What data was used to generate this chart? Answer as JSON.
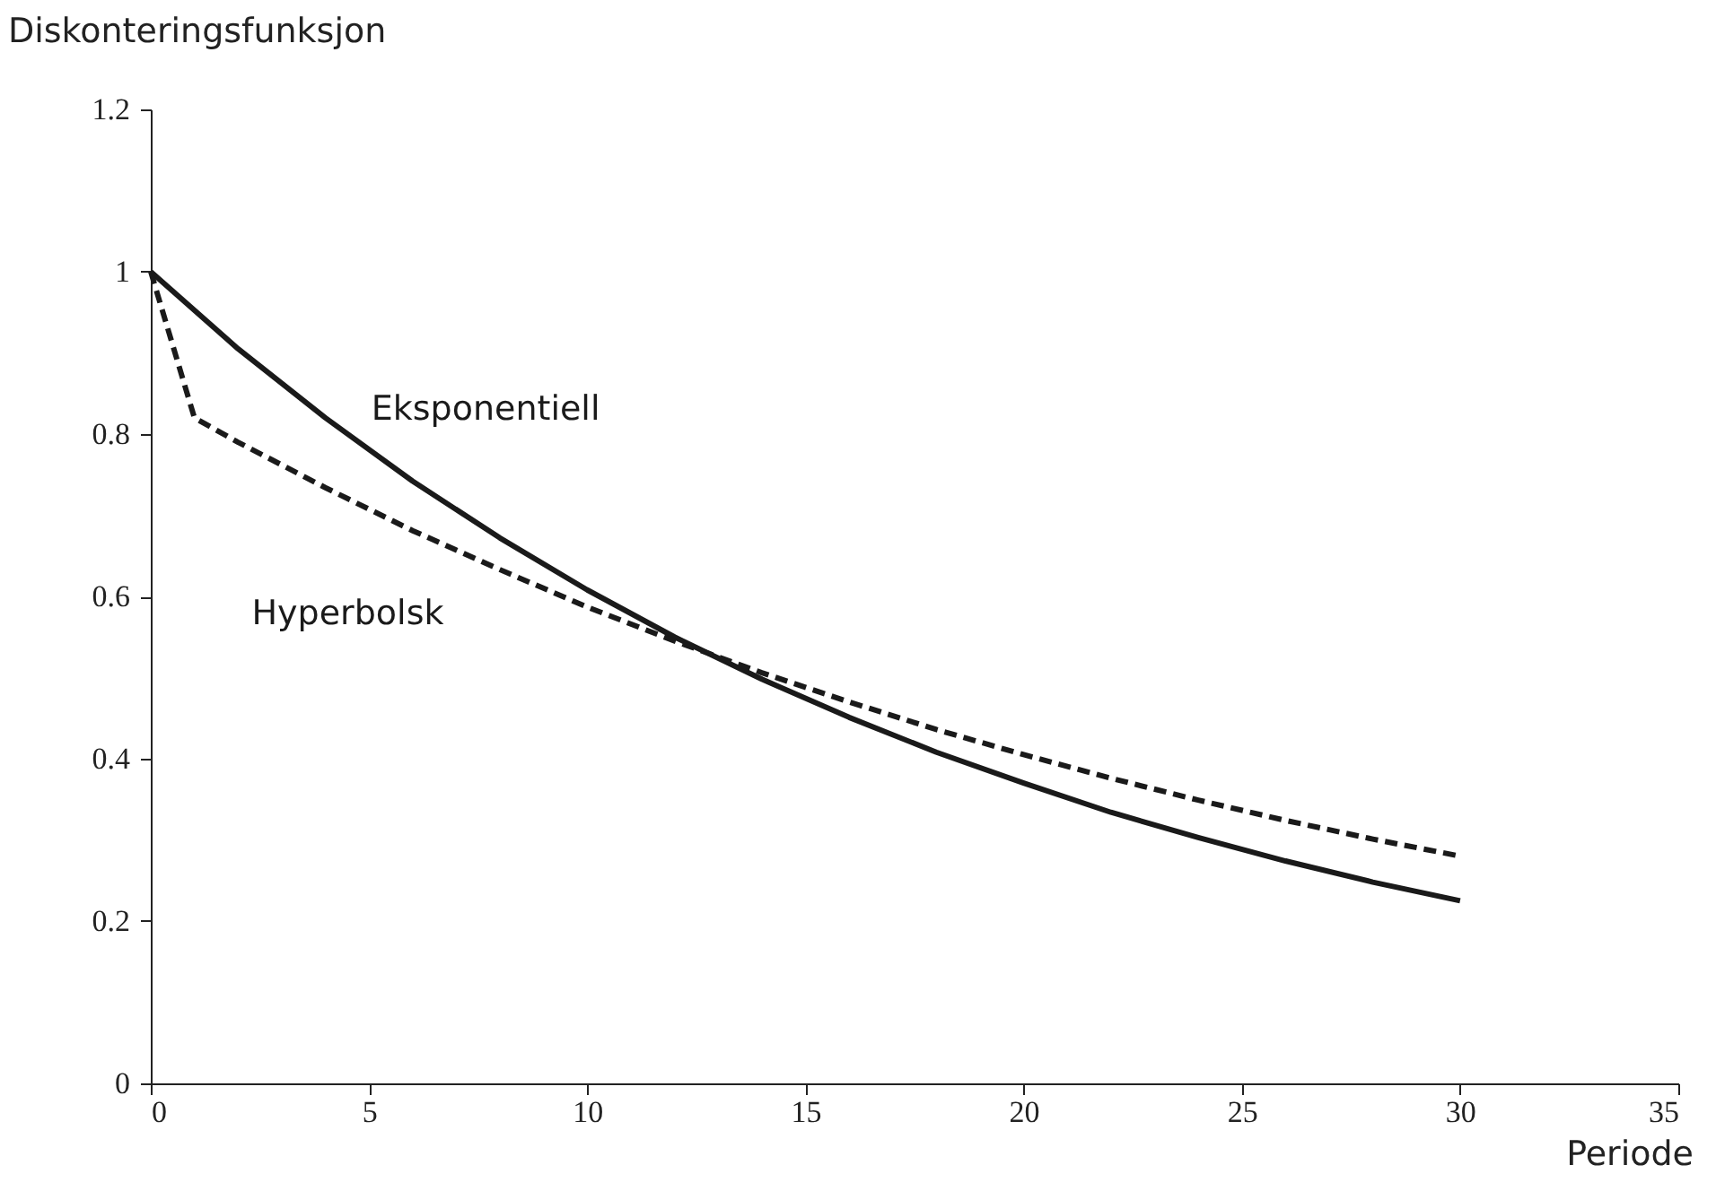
{
  "chart_data": {
    "type": "line",
    "xlabel": "Periode",
    "ylabel": "Diskonteringsfunksjon",
    "xlim": [
      0,
      35
    ],
    "xticks": [
      0,
      5,
      10,
      15,
      20,
      25,
      30,
      35
    ],
    "ylim": [
      0,
      1.2
    ],
    "yticks": [
      0,
      0.2,
      0.4,
      0.6,
      0.8,
      1,
      1.2
    ],
    "legend": false,
    "marker": "none",
    "series": [
      {
        "name": "Eksponentiell",
        "color": "#1a1a1a",
        "line_style": "solid",
        "x": [
          0,
          2,
          4,
          6,
          8,
          10,
          12,
          14,
          16,
          18,
          20,
          22,
          24,
          26,
          28,
          30
        ],
        "values": [
          1,
          0.905,
          0.82,
          0.742,
          0.672,
          0.608,
          0.55,
          0.498,
          0.451,
          0.408,
          0.37,
          0.334,
          0.303,
          0.274,
          0.248,
          0.225
        ]
      },
      {
        "name": "Hyperbolsk",
        "color": "#1a1a1a",
        "line_style": "dashed",
        "x": [
          0,
          1,
          2,
          4,
          6,
          8,
          10,
          12,
          14,
          16,
          18,
          20,
          22,
          24,
          26,
          28,
          30
        ],
        "values": [
          1,
          0.82,
          0.79,
          0.734,
          0.681,
          0.633,
          0.587,
          0.545,
          0.506,
          0.47,
          0.436,
          0.405,
          0.376,
          0.349,
          0.324,
          0.301,
          0.28
        ]
      }
    ]
  }
}
